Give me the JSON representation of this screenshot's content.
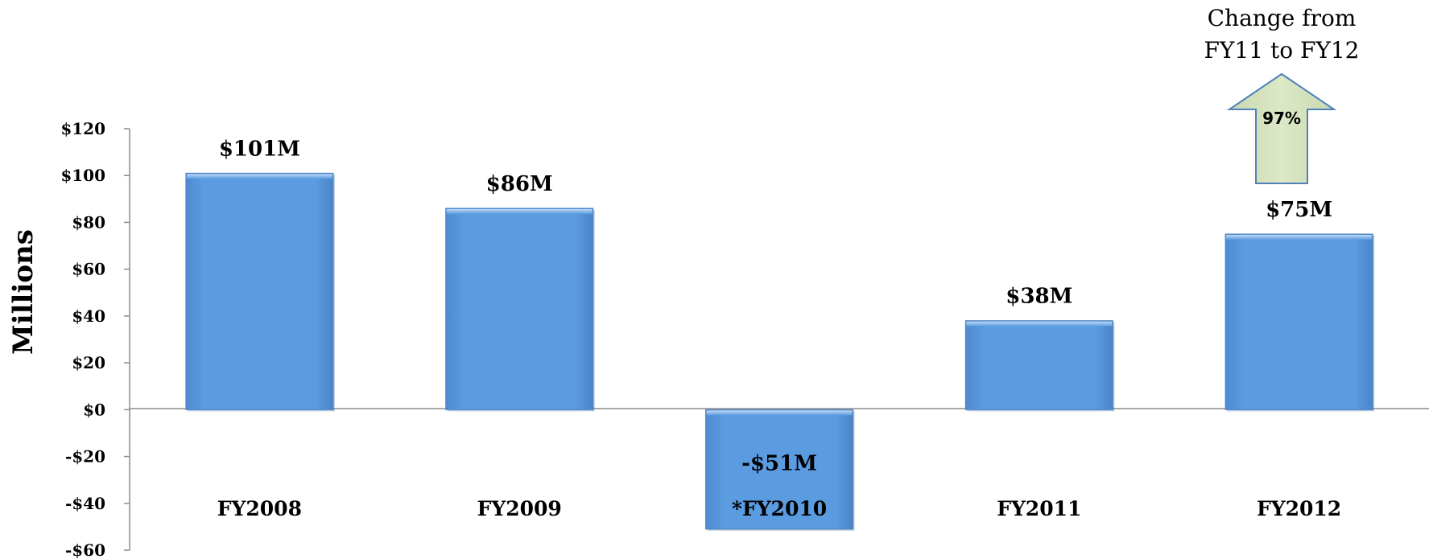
{
  "chart_data": {
    "type": "bar",
    "categories": [
      "FY2008",
      "FY2009",
      "*FY2010",
      "FY2011",
      "FY2012"
    ],
    "values": [
      101,
      86,
      -51,
      38,
      75
    ],
    "data_labels": [
      "$101M",
      "$86M",
      "-$51M",
      "$38M",
      "$75M"
    ],
    "ylabel": "Millions",
    "ylim": [
      -60,
      120
    ],
    "yticks": [
      120,
      100,
      80,
      60,
      40,
      20,
      0,
      -20,
      -40,
      -60
    ],
    "ytick_labels": [
      "$120",
      "$100",
      "$80",
      "$60",
      "$40",
      "$20",
      "$0",
      "-$20",
      "-$40",
      "-$60"
    ],
    "grid": false,
    "legend": "none",
    "bar_color": "#5B9BE0",
    "annotation": {
      "line1": "Change from",
      "line2": "FY11 to FY12",
      "value": "97%",
      "direction": "up",
      "arrow_color": "#D7E4BD"
    }
  }
}
